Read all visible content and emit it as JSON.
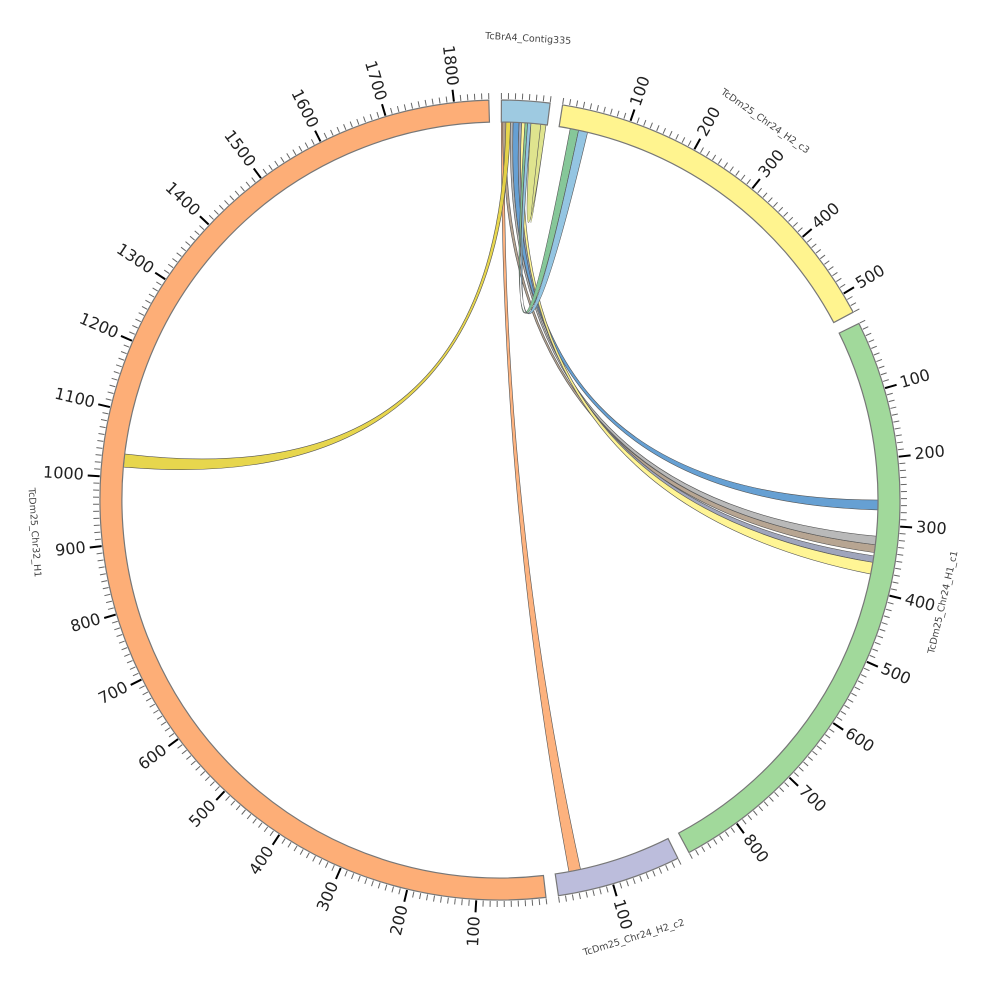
{
  "chart_data": {
    "type": "chord",
    "title": "",
    "units_per_degree": 10,
    "tick_minor_step": 10,
    "tick_major_step": 100,
    "chromosomes": [
      {
        "id": "contig335",
        "label": "TcBrA4_Contig335",
        "length": 70,
        "color": "#9ecae1",
        "reverse": false
      },
      {
        "id": "h2c3",
        "label": "TcDm25_Chr24_H2_c3",
        "length": 530,
        "color": "#fff48f",
        "reverse": false
      },
      {
        "id": "h1c1",
        "label": "TcDm25_Chr24_H1_c1",
        "length": 880,
        "color": "#a1d99b",
        "reverse": false
      },
      {
        "id": "h2c2",
        "label": "TcDm25_Chr24_H2_c2",
        "length": 180,
        "color": "#bcbddc",
        "reverse": false
      },
      {
        "id": "chr32",
        "label": "TcDm25_Chr32_H1",
        "length": 1850,
        "color": "#fdae77",
        "reverse": false
      }
    ],
    "links": [
      {
        "from": [
          "contig335",
          0,
          5
        ],
        "to": [
          "h2c2",
          141,
          159
        ],
        "color": "#fdae77"
      },
      {
        "from": [
          "contig335",
          2,
          7
        ],
        "to": [
          "h1c1",
          330,
          342
        ],
        "color": "#b3a08c"
      },
      {
        "from": [
          "contig335",
          7,
          14
        ],
        "to": [
          "chr32",
          1016,
          1036
        ],
        "color": "#e6d443"
      },
      {
        "from": [
          "contig335",
          14,
          18
        ],
        "to": [
          "h1c1",
          317,
          330
        ],
        "color": "#b5b5b5"
      },
      {
        "from": [
          "contig335",
          18,
          27
        ],
        "to": [
          "h1c1",
          262,
          277
        ],
        "color": "#5e9bd1"
      },
      {
        "from": [
          "contig335",
          27,
          31
        ],
        "to": [
          "h1c1",
          347,
          357
        ],
        "color": "#9aa0b8"
      },
      {
        "from": [
          "contig335",
          31,
          36
        ],
        "to": [
          "h1c1",
          357,
          375
        ],
        "color": "#fff48f"
      },
      {
        "from": [
          "contig335",
          36,
          40
        ],
        "to": [
          "h2c3",
          17,
          30
        ],
        "color": "#7fc494"
      },
      {
        "from": [
          "contig335",
          40,
          45
        ],
        "to": [
          "h2c3",
          30,
          44
        ],
        "color": "#8ec2e0"
      },
      {
        "from": [
          "contig335",
          45,
          68
        ],
        "to": [
          "contig335",
          60,
          68
        ],
        "color": "#dde388",
        "hairpin": true
      }
    ]
  }
}
